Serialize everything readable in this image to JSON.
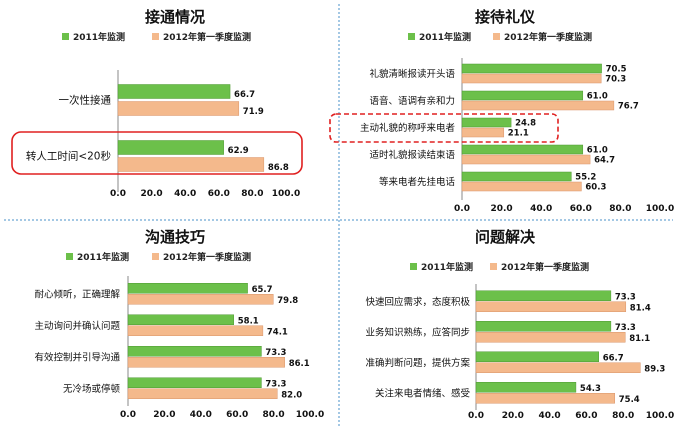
{
  "colors": {
    "series_2011": "#6cc04a",
    "series_2012": "#f4b98c",
    "highlight": "#e02020",
    "divider": "#4a90c8"
  },
  "chart_data": [
    {
      "type": "bar",
      "orientation": "horizontal",
      "title": "接通情况",
      "series_names": [
        "2011年监测",
        "2012年第一季度监测"
      ],
      "categories": [
        "一次性接通",
        "转人工时间<20秒"
      ],
      "series": [
        {
          "name": "2011年监测",
          "values": [
            66.7,
            62.9
          ]
        },
        {
          "name": "2012年第一季度监测",
          "values": [
            71.9,
            86.8
          ]
        }
      ],
      "xlim": [
        0,
        100
      ],
      "xticks": [
        "0.0",
        "20.0",
        "40.0",
        "60.0",
        "80.0",
        "100.0"
      ],
      "highlighted_category": "转人工时间<20秒",
      "legend_position": "top"
    },
    {
      "type": "bar",
      "orientation": "horizontal",
      "title": "接待礼仪",
      "series_names": [
        "2011年监测",
        "2012年第一季度监测"
      ],
      "categories": [
        "礼貌清晰报读开头语",
        "语音、语调有亲和力",
        "主动礼貌的称呼来电者",
        "适时礼貌报读结束语",
        "等来电者先挂电话"
      ],
      "series": [
        {
          "name": "2011年监测",
          "values": [
            70.5,
            61.0,
            24.8,
            61.0,
            55.2
          ]
        },
        {
          "name": "2012年第一季度监测",
          "values": [
            70.3,
            76.7,
            21.1,
            64.7,
            60.3
          ]
        }
      ],
      "xlim": [
        0,
        100
      ],
      "xticks": [
        "0.0",
        "20.0",
        "40.0",
        "60.0",
        "80.0",
        "100.0"
      ],
      "highlighted_category": "主动礼貌的称呼来电者",
      "legend_position": "top"
    },
    {
      "type": "bar",
      "orientation": "horizontal",
      "title": "沟通技巧",
      "series_names": [
        "2011年监测",
        "2012年第一季度监测"
      ],
      "categories": [
        "耐心倾听，正确理解",
        "主动询问并确认问题",
        "有效控制并引导沟通",
        "无冷场或停顿"
      ],
      "series": [
        {
          "name": "2011年监测",
          "values": [
            65.7,
            58.1,
            73.3,
            73.3
          ]
        },
        {
          "name": "2012年第一季度监测",
          "values": [
            79.8,
            74.1,
            86.1,
            82.0
          ]
        }
      ],
      "xlim": [
        0,
        100
      ],
      "xticks": [
        "0.0",
        "20.0",
        "40.0",
        "60.0",
        "80.0",
        "100.0"
      ],
      "legend_position": "top"
    },
    {
      "type": "bar",
      "orientation": "horizontal",
      "title": "问题解决",
      "series_names": [
        "2011年监测",
        "2012年第一季度监测"
      ],
      "categories": [
        "快速回应需求，态度积极",
        "业务知识熟练，应答同步",
        "准确判断问题，提供方案",
        "关注来电者情绪、感受"
      ],
      "series": [
        {
          "name": "2011年监测",
          "values": [
            73.3,
            73.3,
            66.7,
            54.3
          ]
        },
        {
          "name": "2012年第一季度监测",
          "values": [
            81.4,
            81.1,
            89.3,
            75.4
          ]
        }
      ],
      "xlim": [
        0,
        100
      ],
      "xticks": [
        "0.0",
        "20.0",
        "40.0",
        "60.0",
        "80.0",
        "100.0"
      ],
      "legend_position": "top"
    }
  ]
}
